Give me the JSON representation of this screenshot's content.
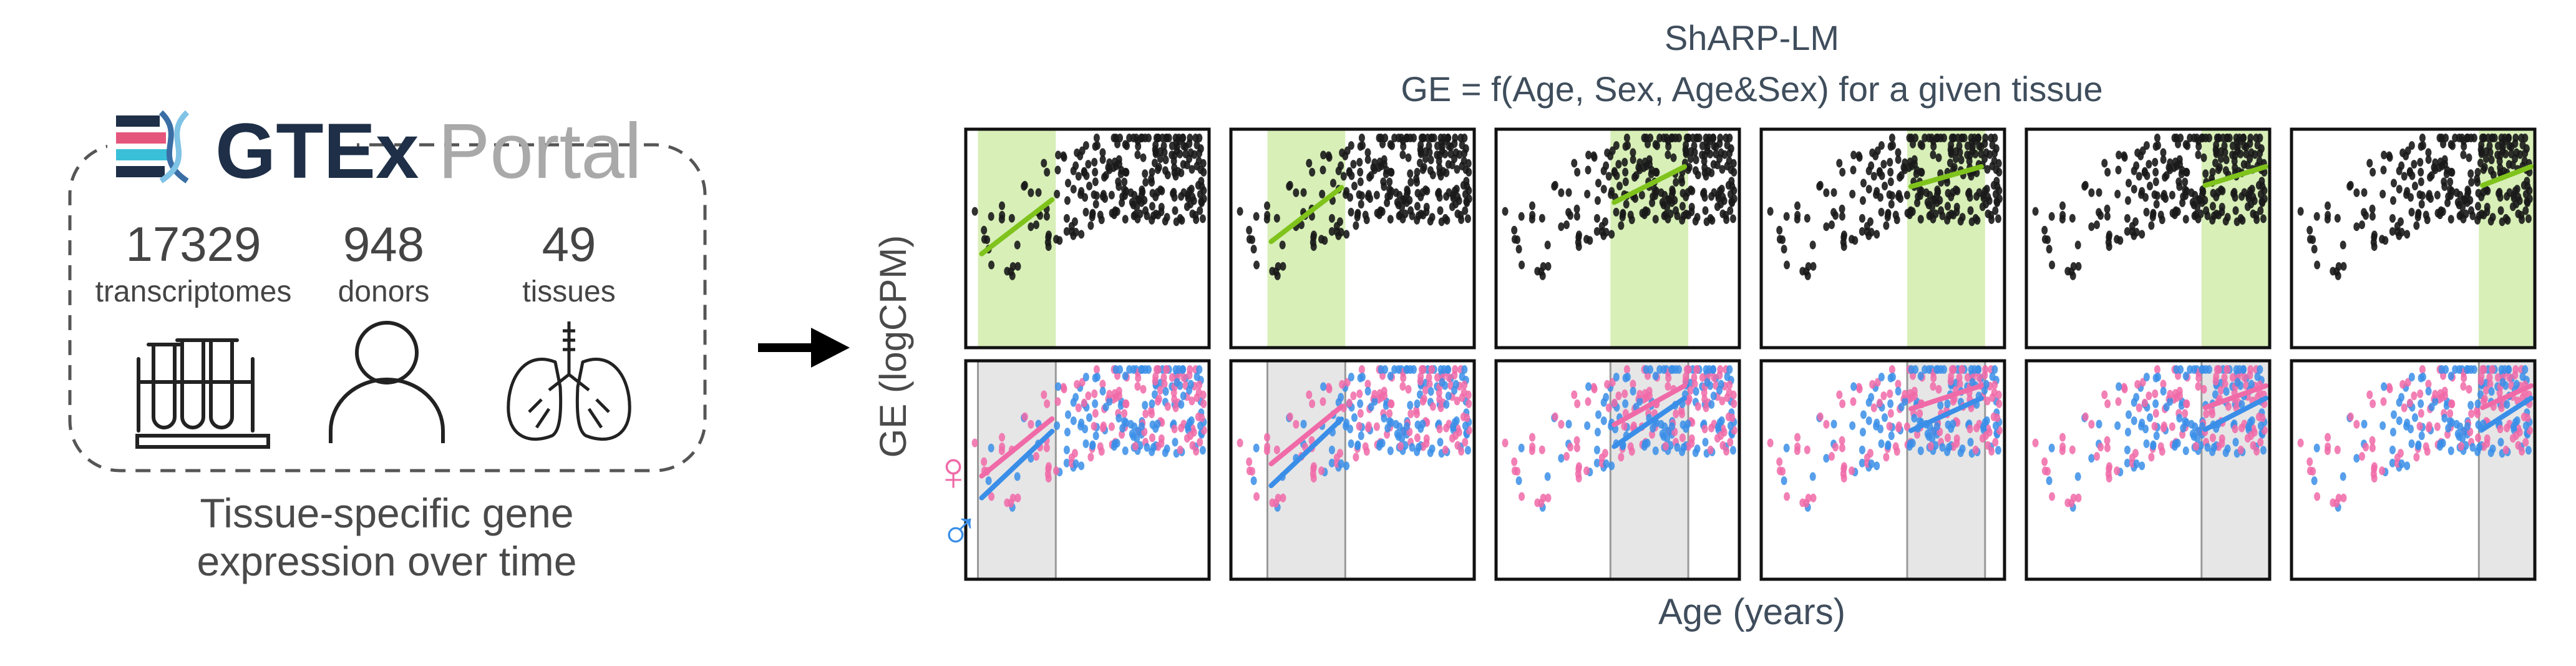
{
  "colors": {
    "highlight_green": "#d8efb8",
    "trend_green": "#7fc31c",
    "highlight_gray": "#e6e6e6",
    "female_pink": "#f06aa8",
    "male_blue": "#3a8ee8",
    "dot_black": "#1a1a1a",
    "text_gray": "#4a4a4a",
    "title_slate": "#3f4d5c"
  },
  "left_panel": {
    "logo_bold": "GTEx",
    "logo_light": "Portal",
    "stats": [
      {
        "number": "17329",
        "label": "transcriptomes",
        "icon": "test-tubes-icon"
      },
      {
        "number": "948",
        "label": "donors",
        "icon": "person-icon"
      },
      {
        "number": "49",
        "label": "tissues",
        "icon": "lungs-icon"
      }
    ],
    "caption_line1": "Tissue-specific gene",
    "caption_line2": "expression over time"
  },
  "arrow_icon": "right-arrow-icon",
  "right_panel": {
    "title_line1": "ShARP-LM",
    "title_line2": "GE = f(Age, Sex, Age&Sex) for a given tissue",
    "ylabel": "GE (logCPM)",
    "xlabel": "Age (years)",
    "female_symbol": "♀",
    "male_symbol": "♂",
    "female_icon": "female-symbol-icon",
    "male_icon": "male-symbol-icon",
    "panels": 6,
    "window_start_fraction": [
      0.05,
      0.15,
      0.47,
      0.6,
      0.72,
      0.77
    ],
    "window_width_fraction": 0.32
  }
}
